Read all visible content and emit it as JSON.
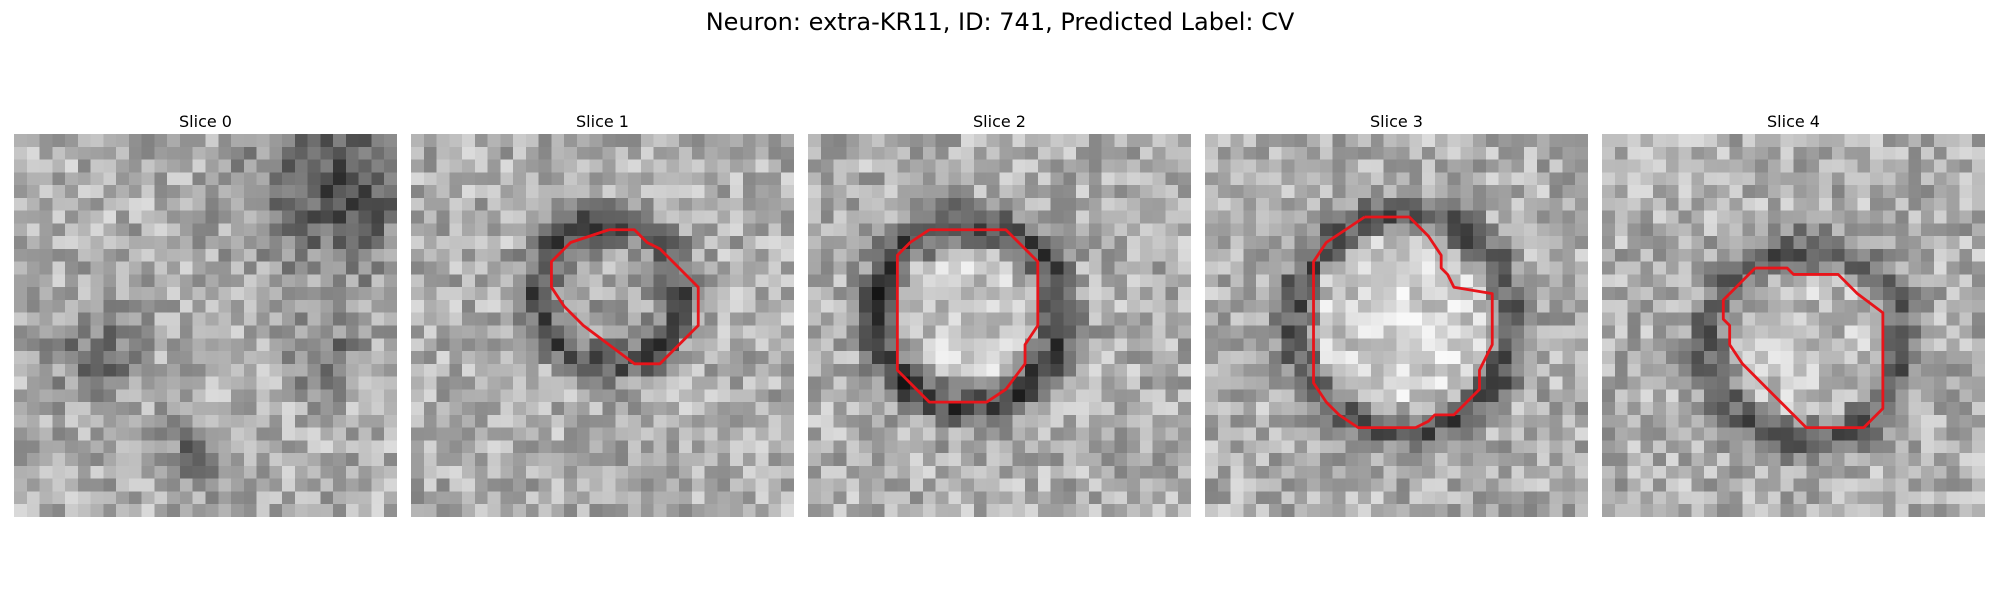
{
  "figure": {
    "title": "Neuron: extra-KR11, ID: 741, Predicted Label: CV"
  },
  "colors": {
    "contour": "#e8141a",
    "background": "#ffffff"
  },
  "panels": [
    {
      "title": "Slice 0",
      "image_kind": "noise",
      "contour": []
    },
    {
      "title": "Slice 1",
      "image_kind": "ring-small",
      "contour": [
        [
          15.5,
          7.5
        ],
        [
          17.5,
          7.5
        ],
        [
          18.5,
          8.5
        ],
        [
          19.5,
          9
        ],
        [
          20.5,
          10
        ],
        [
          22.5,
          12
        ],
        [
          22.5,
          15
        ],
        [
          21,
          16.5
        ],
        [
          19.5,
          18
        ],
        [
          17.5,
          18
        ],
        [
          15.5,
          16.5
        ],
        [
          13.5,
          15
        ],
        [
          12,
          13.5
        ],
        [
          11,
          12
        ],
        [
          11,
          10
        ],
        [
          12.5,
          8.5
        ],
        [
          14,
          8
        ],
        [
          15.5,
          7.5
        ]
      ]
    },
    {
      "title": "Slice 2",
      "image_kind": "ring",
      "contour": [
        [
          9.5,
          7.5
        ],
        [
          15.5,
          7.5
        ],
        [
          17,
          9
        ],
        [
          18,
          10
        ],
        [
          18,
          15
        ],
        [
          17,
          16.5
        ],
        [
          17,
          18
        ],
        [
          15.5,
          20
        ],
        [
          14,
          21
        ],
        [
          9.5,
          21
        ],
        [
          8.5,
          20
        ],
        [
          7,
          18.5
        ],
        [
          7,
          9.5
        ],
        [
          8,
          8.5
        ],
        [
          9.5,
          7.5
        ]
      ]
    },
    {
      "title": "Slice 3",
      "image_kind": "ring-large",
      "contour": [
        [
          12.5,
          6.5
        ],
        [
          16,
          6.5
        ],
        [
          17.5,
          8
        ],
        [
          18.5,
          9.5
        ],
        [
          18.5,
          10.5
        ],
        [
          19,
          11
        ],
        [
          19.5,
          12
        ],
        [
          22.5,
          12.5
        ],
        [
          22.5,
          16.5
        ],
        [
          22,
          17.5
        ],
        [
          21.5,
          18.5
        ],
        [
          21.5,
          20
        ],
        [
          20.5,
          21
        ],
        [
          19.5,
          22
        ],
        [
          18,
          22
        ],
        [
          17.5,
          22.5
        ],
        [
          16.5,
          23
        ],
        [
          12,
          23
        ],
        [
          10.5,
          22
        ],
        [
          9.5,
          21
        ],
        [
          8.5,
          19.5
        ],
        [
          8.5,
          10
        ],
        [
          9.5,
          8.5
        ],
        [
          11,
          7.5
        ],
        [
          12.5,
          6.5
        ]
      ]
    },
    {
      "title": "Slice 4",
      "image_kind": "ring-offset",
      "contour": [
        [
          12,
          10.5
        ],
        [
          14.5,
          10.5
        ],
        [
          15,
          11
        ],
        [
          18.5,
          11
        ],
        [
          20,
          12.5
        ],
        [
          22,
          14
        ],
        [
          22,
          21.5
        ],
        [
          20.5,
          23
        ],
        [
          16,
          23
        ],
        [
          13.5,
          20.5
        ],
        [
          11,
          18
        ],
        [
          10,
          16.5
        ],
        [
          10,
          15
        ],
        [
          9.5,
          14.5
        ],
        [
          9.5,
          13
        ],
        [
          10.5,
          12
        ],
        [
          12,
          10.5
        ]
      ]
    }
  ]
}
